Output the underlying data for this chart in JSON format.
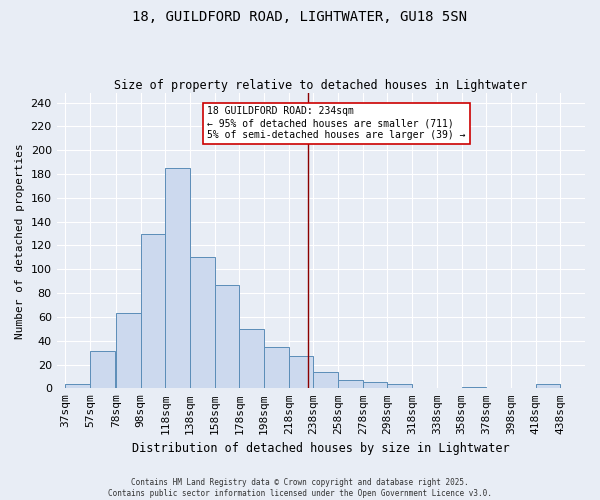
{
  "title1": "18, GUILDFORD ROAD, LIGHTWATER, GU18 5SN",
  "title2": "Size of property relative to detached houses in Lightwater",
  "xlabel": "Distribution of detached houses by size in Lightwater",
  "ylabel": "Number of detached properties",
  "bar_left_edges": [
    37,
    57,
    78,
    98,
    118,
    138,
    158,
    178,
    198,
    218,
    238,
    258,
    278,
    298,
    318,
    338,
    358,
    378,
    398,
    418
  ],
  "bar_widths": [
    20,
    20,
    20,
    20,
    20,
    20,
    20,
    20,
    20,
    20,
    20,
    20,
    20,
    20,
    20,
    20,
    20,
    20,
    20,
    20
  ],
  "bar_heights": [
    4,
    31,
    63,
    130,
    185,
    110,
    87,
    50,
    35,
    27,
    14,
    7,
    5,
    4,
    0,
    0,
    1,
    0,
    0,
    4
  ],
  "x_tick_labels": [
    "37sqm",
    "57sqm",
    "78sqm",
    "98sqm",
    "118sqm",
    "138sqm",
    "158sqm",
    "178sqm",
    "198sqm",
    "218sqm",
    "238sqm",
    "258sqm",
    "278sqm",
    "298sqm",
    "318sqm",
    "338sqm",
    "358sqm",
    "378sqm",
    "398sqm",
    "418sqm",
    "438sqm"
  ],
  "x_tick_positions": [
    37,
    57,
    78,
    98,
    118,
    138,
    158,
    178,
    198,
    218,
    238,
    258,
    278,
    298,
    318,
    338,
    358,
    378,
    398,
    418,
    438
  ],
  "bar_color": "#ccd9ee",
  "bar_edge_color": "#5b8db8",
  "background_color": "#e8edf5",
  "grid_color": "#ffffff",
  "vline_x": 234,
  "vline_color": "#8b0000",
  "annotation_line1": "18 GUILDFORD ROAD: 234sqm",
  "annotation_line2": "← 95% of detached houses are smaller (711)",
  "annotation_line3": "5% of semi-detached houses are larger (39) →",
  "ylim_max": 248,
  "xlim": [
    30,
    458
  ],
  "yticks": [
    0,
    20,
    40,
    60,
    80,
    100,
    120,
    140,
    160,
    180,
    200,
    220,
    240
  ],
  "footer1": "Contains HM Land Registry data © Crown copyright and database right 2025.",
  "footer2": "Contains public sector information licensed under the Open Government Licence v3.0."
}
